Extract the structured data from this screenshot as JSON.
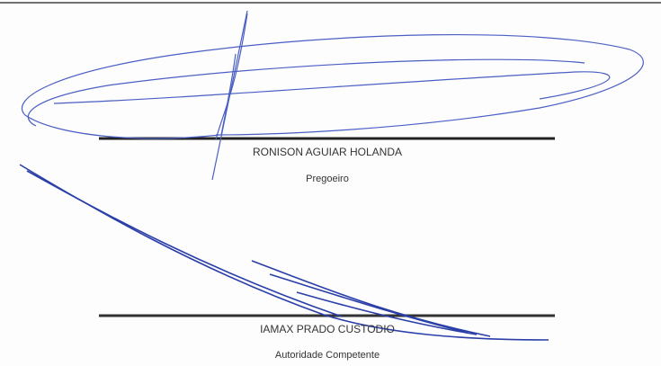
{
  "signatures": [
    {
      "name": "RONISON AGUIAR HOLANDA",
      "role": "Pregoeiro"
    },
    {
      "name": "IAMAX PRADO CUSTODIO",
      "role": "Autoridade Competente"
    }
  ]
}
